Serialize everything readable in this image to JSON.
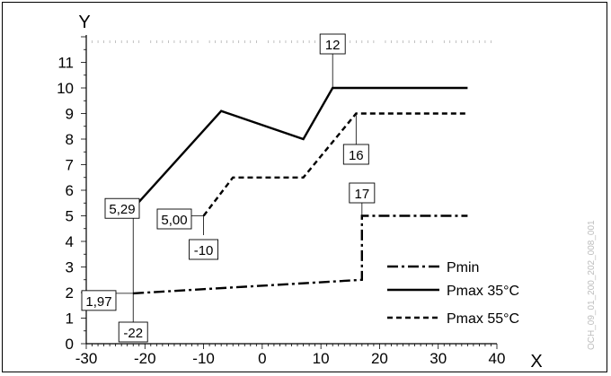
{
  "chart_data": {
    "type": "line",
    "xlabel": "X",
    "ylabel": "Y",
    "xlim": [
      -30,
      40
    ],
    "ylim": [
      0,
      12
    ],
    "x_ticks": [
      -30,
      -20,
      -10,
      0,
      10,
      20,
      30,
      40
    ],
    "y_ticks": [
      0,
      1,
      2,
      3,
      4,
      5,
      6,
      7,
      8,
      9,
      10,
      11
    ],
    "grid": false,
    "legend_position": "bottom-right",
    "series": [
      {
        "name": "Pmin",
        "style": "dashdot",
        "color": "#000000",
        "x": [
          -22,
          17,
          17,
          35
        ],
        "y": [
          1.97,
          2.5,
          5.0,
          5.0
        ]
      },
      {
        "name": "Pmax 35°C",
        "style": "solid",
        "color": "#000000",
        "x": [
          -22,
          -7,
          7,
          12,
          35
        ],
        "y": [
          5.29,
          9.1,
          8.0,
          10.0,
          10.0
        ]
      },
      {
        "name": "Pmax 55°C",
        "style": "dashed",
        "color": "#000000",
        "x": [
          -10,
          -5,
          7,
          16,
          35
        ],
        "y": [
          5.0,
          6.5,
          6.5,
          9.0,
          9.0
        ]
      }
    ],
    "annotations": [
      {
        "text": "12",
        "x": 12,
        "y": 10.0
      },
      {
        "text": "16",
        "x": 16,
        "y": 9.0
      },
      {
        "text": "17",
        "x": 17,
        "y": 5.0
      },
      {
        "text": "5,29",
        "x": -22,
        "y": 5.29
      },
      {
        "text": "5,00",
        "x": -10,
        "y": 5.0
      },
      {
        "text": "-10",
        "x": -10,
        "y": 5.0
      },
      {
        "text": "1,97",
        "x": -22,
        "y": 1.97
      },
      {
        "text": "-22",
        "x": -22,
        "y": 1.97
      }
    ]
  },
  "document_id": "OCH_09_01_200_202_008_001"
}
